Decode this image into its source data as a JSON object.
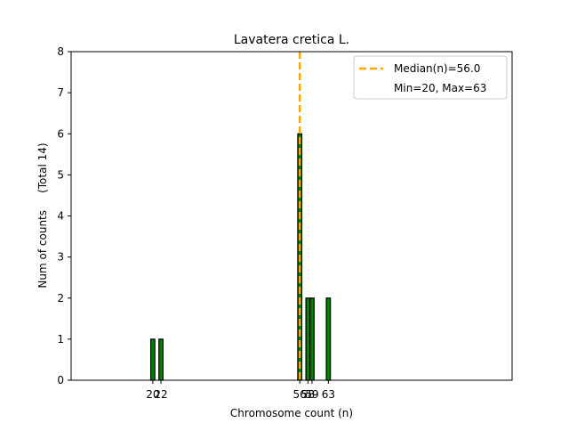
{
  "chart_data": {
    "type": "bar",
    "title": "Lavatera cretica L.",
    "xlabel": "Chromosome count (n)",
    "ylabel": "Num of counts     (Total 14)",
    "xlim": [
      0,
      108
    ],
    "ylim": [
      0,
      8
    ],
    "yticks": [
      0,
      1,
      2,
      3,
      4,
      5,
      6,
      7,
      8
    ],
    "xticks": [
      20,
      22,
      56,
      58,
      59,
      63
    ],
    "bars": [
      {
        "x": 20,
        "value": 1
      },
      {
        "x": 22,
        "value": 1
      },
      {
        "x": 56,
        "value": 6
      },
      {
        "x": 58,
        "value": 2
      },
      {
        "x": 59,
        "value": 2
      },
      {
        "x": 63,
        "value": 2
      }
    ],
    "bar_width": 1,
    "median": 56.0,
    "legend": {
      "placement": "top-right",
      "entries": [
        {
          "label": "Median(n)=56.0",
          "style": "dashed-line"
        },
        {
          "label": "Min=20, Max=63",
          "style": "none"
        }
      ]
    },
    "grid": false,
    "colors": {
      "bar_fill": "#008000",
      "bar_edge": "#000000",
      "median_line": "#ffa500"
    }
  }
}
